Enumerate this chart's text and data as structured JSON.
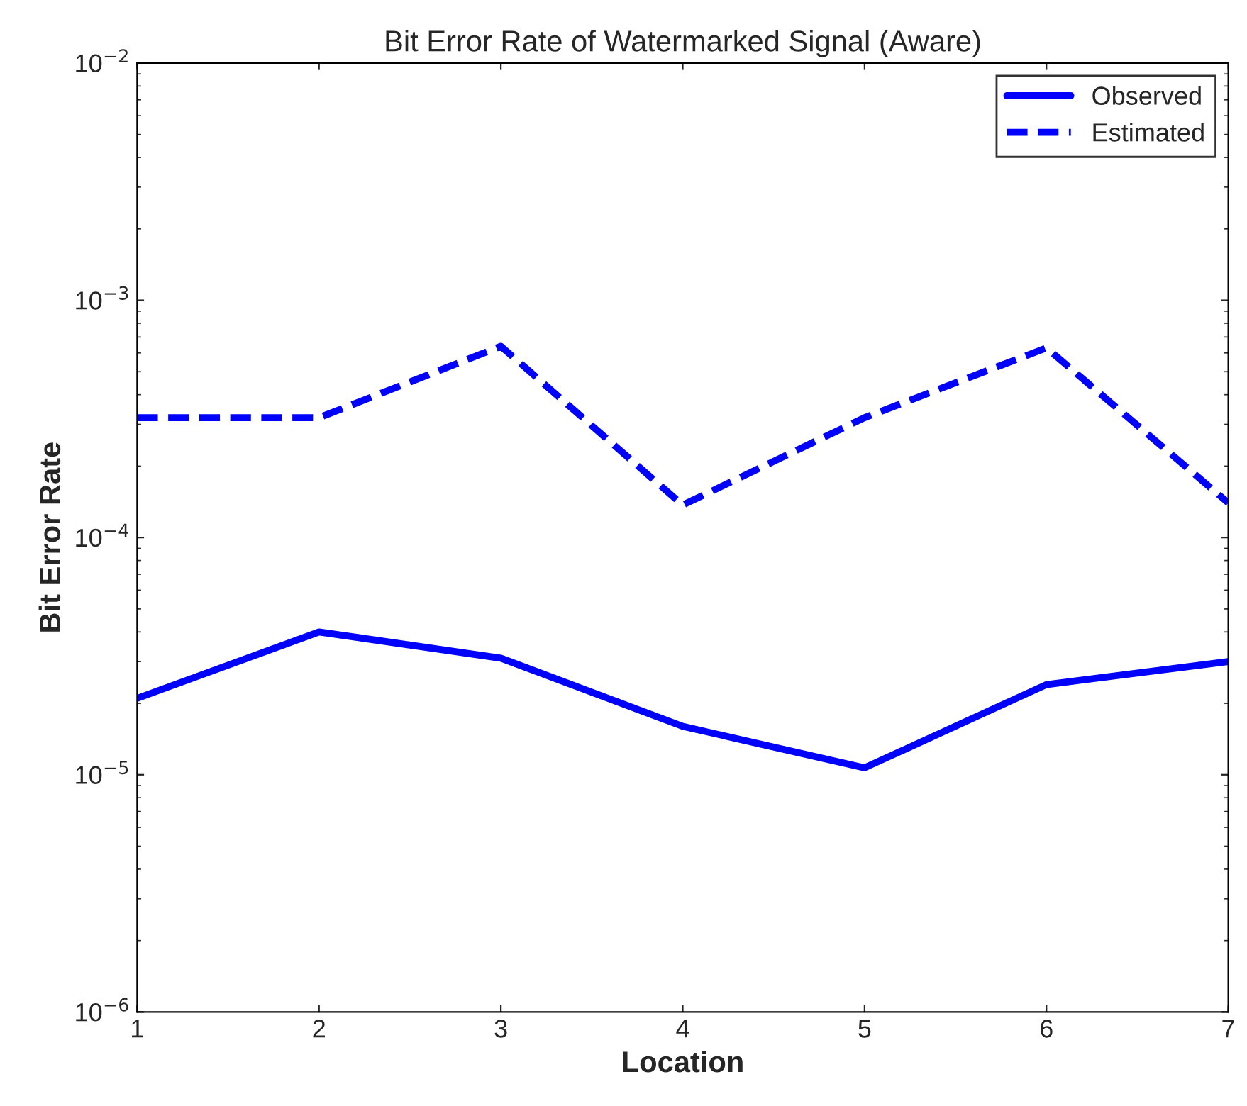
{
  "chart_data": {
    "type": "line",
    "title": "Bit Error Rate of Watermarked Signal (Aware)",
    "xlabel": "Location",
    "ylabel": "Bit Error Rate",
    "x": [
      1,
      2,
      3,
      4,
      5,
      6,
      7
    ],
    "series": [
      {
        "name": "Observed",
        "color": "#0000ff",
        "line_style": "solid",
        "values": [
          2.1e-05,
          4e-05,
          3.1e-05,
          1.6e-05,
          1.07e-05,
          2.4e-05,
          3e-05
        ]
      },
      {
        "name": "Estimated",
        "color": "#0000ff",
        "line_style": "dashed",
        "values": [
          0.00032,
          0.00032,
          0.00064,
          0.000137,
          0.00032,
          0.00063,
          0.00014
        ]
      }
    ],
    "log": "y",
    "xlim": [
      1,
      7
    ],
    "ylim": [
      1e-06,
      0.01
    ],
    "xticks": [
      1,
      2,
      3,
      4,
      5,
      6,
      7
    ],
    "yticks": [
      {
        "value": 1e-06,
        "label": "10$^{−6}$"
      },
      {
        "value": 1e-05,
        "label": "10$^{−5}$"
      },
      {
        "value": 0.0001,
        "label": "10$^{−4}$"
      },
      {
        "value": 0.001,
        "label": "10$^{−3}$"
      },
      {
        "value": 0.01,
        "label": "10$^{−2}$"
      }
    ],
    "grid": false,
    "legend": "top right",
    "marker": "none"
  }
}
